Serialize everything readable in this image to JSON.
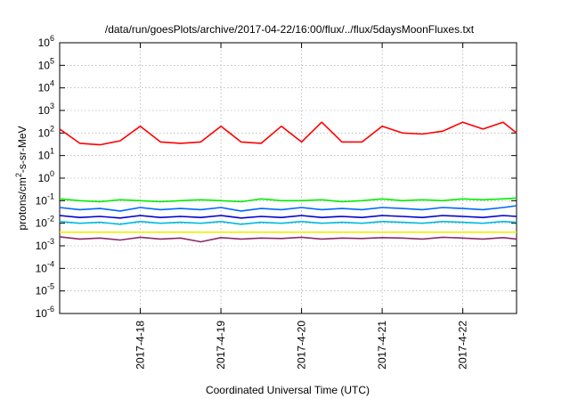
{
  "chart_data": {
    "type": "line",
    "title": "/data/run/goesPlots/archive/2017-04-22/16:00/flux/../flux/5daysMoonFluxes.txt",
    "xlabel": "Coordinated Universal Time (UTC)",
    "ylabel_prefix": "protons/cm",
    "ylabel_sup": "2",
    "ylabel_suffix": "-s-sr-MeV",
    "x_range": [
      "2017-04-17T00:00",
      "2017-04-22T16:00"
    ],
    "x_ticks": [
      "2017-4-18",
      "2017-4-19",
      "2017-4-20",
      "2017-4-21",
      "2017-4-22"
    ],
    "y_scale": "log",
    "y_ticks": [
      {
        "base": "10",
        "exp": "6"
      },
      {
        "base": "10",
        "exp": "5"
      },
      {
        "base": "10",
        "exp": "4"
      },
      {
        "base": "10",
        "exp": "3"
      },
      {
        "base": "10",
        "exp": "2"
      },
      {
        "base": "10",
        "exp": "1"
      },
      {
        "base": "10",
        "exp": "0"
      },
      {
        "base": "10",
        "exp": "-1"
      },
      {
        "base": "10",
        "exp": "-2"
      },
      {
        "base": "10",
        "exp": "-3"
      },
      {
        "base": "10",
        "exp": "-4"
      },
      {
        "base": "10",
        "exp": "-5"
      },
      {
        "base": "10",
        "exp": "-6"
      }
    ],
    "ylim": [
      1e-06,
      1000000.0
    ],
    "grid": true,
    "legend": "none",
    "series": [
      {
        "color": "#ff0000",
        "x": [
          "2017-04-17T00:00",
          "2017-04-17T06:00",
          "2017-04-17T12:00",
          "2017-04-17T18:00",
          "2017-04-18T00:00",
          "2017-04-18T06:00",
          "2017-04-18T12:00",
          "2017-04-18T18:00",
          "2017-04-19T00:00",
          "2017-04-19T06:00",
          "2017-04-19T12:00",
          "2017-04-19T18:00",
          "2017-04-20T00:00",
          "2017-04-20T06:00",
          "2017-04-20T12:00",
          "2017-04-20T18:00",
          "2017-04-21T00:00",
          "2017-04-21T06:00",
          "2017-04-21T12:00",
          "2017-04-21T18:00",
          "2017-04-22T00:00",
          "2017-04-22T06:00",
          "2017-04-22T12:00",
          "2017-04-22T16:00"
        ],
        "values": [
          150,
          35,
          30,
          45,
          200,
          40,
          35,
          40,
          200,
          40,
          35,
          200,
          40,
          300,
          40,
          40,
          200,
          100,
          90,
          120,
          300,
          150,
          300,
          100
        ]
      },
      {
        "color": "#00ee00",
        "x": [
          "2017-04-17T00:00",
          "2017-04-17T06:00",
          "2017-04-17T12:00",
          "2017-04-17T18:00",
          "2017-04-18T00:00",
          "2017-04-18T06:00",
          "2017-04-18T12:00",
          "2017-04-18T18:00",
          "2017-04-19T00:00",
          "2017-04-19T06:00",
          "2017-04-19T12:00",
          "2017-04-19T18:00",
          "2017-04-20T00:00",
          "2017-04-20T06:00",
          "2017-04-20T12:00",
          "2017-04-20T18:00",
          "2017-04-21T00:00",
          "2017-04-21T06:00",
          "2017-04-21T12:00",
          "2017-04-21T18:00",
          "2017-04-22T00:00",
          "2017-04-22T06:00",
          "2017-04-22T12:00",
          "2017-04-22T16:00"
        ],
        "values": [
          0.12,
          0.1,
          0.09,
          0.11,
          0.1,
          0.09,
          0.1,
          0.11,
          0.1,
          0.09,
          0.12,
          0.1,
          0.1,
          0.11,
          0.09,
          0.1,
          0.12,
          0.1,
          0.11,
          0.1,
          0.12,
          0.11,
          0.12,
          0.13
        ]
      },
      {
        "color": "#00bbdd",
        "x": [
          "2017-04-17T00:00",
          "2017-04-17T06:00",
          "2017-04-17T12:00",
          "2017-04-17T18:00",
          "2017-04-18T00:00",
          "2017-04-18T06:00",
          "2017-04-18T12:00",
          "2017-04-18T18:00",
          "2017-04-19T00:00",
          "2017-04-19T06:00",
          "2017-04-19T12:00",
          "2017-04-19T18:00",
          "2017-04-20T00:00",
          "2017-04-20T06:00",
          "2017-04-20T12:00",
          "2017-04-20T18:00",
          "2017-04-21T00:00",
          "2017-04-21T06:00",
          "2017-04-21T12:00",
          "2017-04-21T18:00",
          "2017-04-22T00:00",
          "2017-04-22T06:00",
          "2017-04-22T12:00",
          "2017-04-22T16:00"
        ],
        "values": [
          0.012,
          0.01,
          0.011,
          0.009,
          0.012,
          0.01,
          0.011,
          0.01,
          0.012,
          0.009,
          0.011,
          0.01,
          0.012,
          0.01,
          0.011,
          0.01,
          0.012,
          0.011,
          0.01,
          0.012,
          0.011,
          0.01,
          0.012,
          0.011
        ]
      },
      {
        "color": "#0066ff",
        "x": [
          "2017-04-17T00:00",
          "2017-04-17T06:00",
          "2017-04-17T12:00",
          "2017-04-17T18:00",
          "2017-04-18T00:00",
          "2017-04-18T06:00",
          "2017-04-18T12:00",
          "2017-04-18T18:00",
          "2017-04-19T00:00",
          "2017-04-19T06:00",
          "2017-04-19T12:00",
          "2017-04-19T18:00",
          "2017-04-20T00:00",
          "2017-04-20T06:00",
          "2017-04-20T12:00",
          "2017-04-20T18:00",
          "2017-04-21T00:00",
          "2017-04-21T06:00",
          "2017-04-21T12:00",
          "2017-04-21T18:00",
          "2017-04-22T00:00",
          "2017-04-22T06:00",
          "2017-04-22T12:00",
          "2017-04-22T16:00"
        ],
        "values": [
          0.05,
          0.04,
          0.045,
          0.035,
          0.05,
          0.04,
          0.045,
          0.04,
          0.05,
          0.035,
          0.045,
          0.04,
          0.05,
          0.04,
          0.045,
          0.04,
          0.05,
          0.045,
          0.04,
          0.05,
          0.045,
          0.04,
          0.05,
          0.06
        ]
      },
      {
        "color": "#0000cc",
        "x": [
          "2017-04-17T00:00",
          "2017-04-17T06:00",
          "2017-04-17T12:00",
          "2017-04-17T18:00",
          "2017-04-18T00:00",
          "2017-04-18T06:00",
          "2017-04-18T12:00",
          "2017-04-18T18:00",
          "2017-04-19T00:00",
          "2017-04-19T06:00",
          "2017-04-19T12:00",
          "2017-04-19T18:00",
          "2017-04-20T00:00",
          "2017-04-20T06:00",
          "2017-04-20T12:00",
          "2017-04-20T18:00",
          "2017-04-21T00:00",
          "2017-04-21T06:00",
          "2017-04-21T12:00",
          "2017-04-21T18:00",
          "2017-04-22T00:00",
          "2017-04-22T06:00",
          "2017-04-22T12:00",
          "2017-04-22T16:00"
        ],
        "values": [
          0.022,
          0.018,
          0.02,
          0.017,
          0.022,
          0.018,
          0.02,
          0.018,
          0.022,
          0.017,
          0.02,
          0.018,
          0.022,
          0.018,
          0.02,
          0.018,
          0.022,
          0.02,
          0.018,
          0.022,
          0.02,
          0.018,
          0.022,
          0.02
        ]
      },
      {
        "color": "#eeee00",
        "x": [
          "2017-04-17T00:00",
          "2017-04-22T16:00"
        ],
        "values": [
          0.004,
          0.004
        ]
      },
      {
        "color": "#8b2a6b",
        "x": [
          "2017-04-17T00:00",
          "2017-04-17T06:00",
          "2017-04-17T12:00",
          "2017-04-17T18:00",
          "2017-04-18T00:00",
          "2017-04-18T06:00",
          "2017-04-18T12:00",
          "2017-04-18T18:00",
          "2017-04-19T00:00",
          "2017-04-19T06:00",
          "2017-04-19T12:00",
          "2017-04-19T18:00",
          "2017-04-20T00:00",
          "2017-04-20T06:00",
          "2017-04-20T12:00",
          "2017-04-20T18:00",
          "2017-04-21T00:00",
          "2017-04-21T06:00",
          "2017-04-21T12:00",
          "2017-04-21T18:00",
          "2017-04-22T00:00",
          "2017-04-22T06:00",
          "2017-04-22T12:00",
          "2017-04-22T16:00"
        ],
        "values": [
          0.0025,
          0.002,
          0.0022,
          0.0018,
          0.0024,
          0.002,
          0.0022,
          0.0015,
          0.0023,
          0.002,
          0.0022,
          0.0021,
          0.0024,
          0.002,
          0.0022,
          0.0021,
          0.0023,
          0.0022,
          0.002,
          0.0024,
          0.0022,
          0.002,
          0.0023,
          0.002
        ]
      }
    ]
  }
}
